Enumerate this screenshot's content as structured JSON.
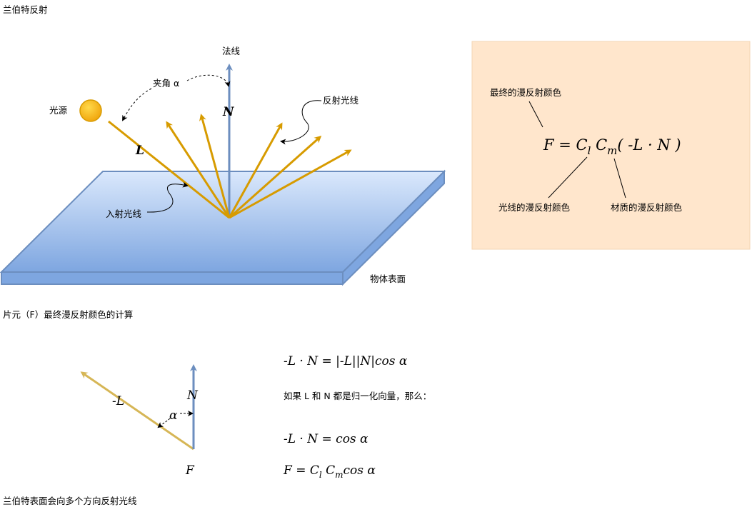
{
  "titles": {
    "top": "兰伯特反射",
    "middle": "片元（F）最终漫反射颜色的计算",
    "bottom": "兰伯特表面会向多个方向反射光线"
  },
  "scene": {
    "normal_label": "法线",
    "normal_symbol": "N",
    "angle_label": "夹角 α",
    "light_label": "光源",
    "light_symbol": "L",
    "reflect_label": "反射光线",
    "incident_label": "入射光线",
    "surface_label": "物体表面"
  },
  "formula_box": {
    "formula": "F = C_l C_m( -L · N )",
    "final_label": "最终的漫反射颜色",
    "light_color_label": "光线的漫反射颜色",
    "material_color_label": "材质的漫反射颜色",
    "background": "#ffe6cc"
  },
  "vectors": {
    "neg_l": "-L",
    "n": "N",
    "alpha": "α",
    "f": "F"
  },
  "equations": {
    "eq1": "-L · N = |-L||N|cos α",
    "note": "如果 L 和 N 都是归一化向量，那么：",
    "eq2": "-L · N = cos α",
    "eq3": "F = C_l C_m cos α"
  },
  "colors": {
    "ray": "#d79b00",
    "normal": "#6c8ebf",
    "vector_l": "#d6b656",
    "sun": "#ffcd28",
    "surface_top": "#dae8fc",
    "surface_bottom": "#7ea6e0"
  }
}
